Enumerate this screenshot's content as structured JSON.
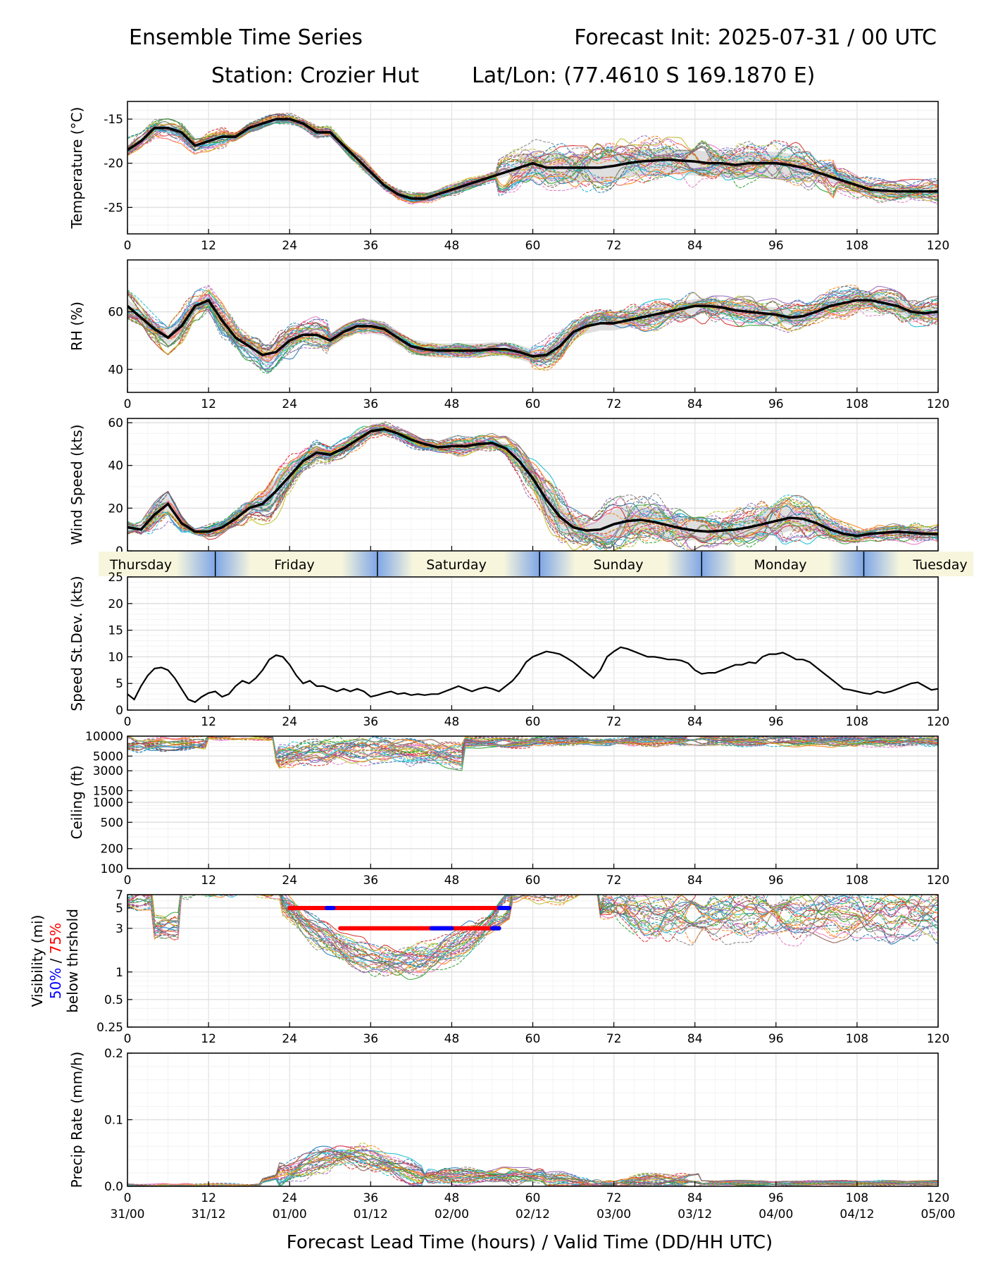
{
  "header": {
    "title_left": "Ensemble Time Series",
    "title_right": "Forecast Init: 2025-07-31 / 00 UTC",
    "station": "Station: Crozier Hut",
    "latlon": "Lat/Lon: (77.4610 S 169.1870 E)"
  },
  "x_axis": {
    "ticks": [
      0,
      12,
      24,
      36,
      48,
      60,
      72,
      84,
      96,
      108,
      120
    ],
    "valid_times": [
      "31/00",
      "31/12",
      "01/00",
      "01/12",
      "02/00",
      "02/12",
      "03/00",
      "03/12",
      "04/00",
      "04/12",
      "05/00"
    ],
    "label": "Forecast Lead Time (hours) / Valid Time (DD/HH UTC)"
  },
  "day_band": {
    "days": [
      "Thursday",
      "Friday",
      "Saturday",
      "Sunday",
      "Monday",
      "Tuesday"
    ],
    "boundaries": [
      13,
      37,
      61,
      85,
      109
    ]
  },
  "colors": {
    "mean": "#000000",
    "spread": "#d9d9d9",
    "threshold50": "#0000ff",
    "threshold75": "#ff0000",
    "members": [
      "#1f77b4",
      "#ff7f0e",
      "#2ca02c",
      "#d62728",
      "#9467bd",
      "#8c564b",
      "#e377c2",
      "#7f7f7f",
      "#bcbd22",
      "#17becf"
    ]
  },
  "chart_data": [
    {
      "id": "temperature",
      "type": "line",
      "ylabel": "Temperature (°C)",
      "ylim": [
        -28,
        -13
      ],
      "yticks": [
        -15,
        -20,
        -25
      ],
      "ensemble_mean": {
        "x": [
          0,
          2,
          4,
          6,
          8,
          10,
          12,
          14,
          16,
          18,
          20,
          22,
          24,
          26,
          28,
          30,
          32,
          34,
          36,
          38,
          40,
          42,
          44,
          46,
          48,
          50,
          52,
          54,
          56,
          58,
          60,
          62,
          64,
          66,
          68,
          70,
          72,
          74,
          76,
          78,
          80,
          82,
          84,
          86,
          88,
          90,
          92,
          94,
          96,
          98,
          100,
          102,
          104,
          106,
          108,
          110,
          112,
          114,
          116,
          118,
          120
        ],
        "y": [
          -18.5,
          -17.5,
          -16.0,
          -16.0,
          -16.5,
          -18.0,
          -17.5,
          -17.0,
          -17.0,
          -16.0,
          -15.5,
          -15.0,
          -15.0,
          -15.5,
          -16.5,
          -16.5,
          -18.0,
          -19.5,
          -21.0,
          -22.5,
          -23.5,
          -24.0,
          -24.0,
          -23.5,
          -23.0,
          -22.5,
          -22.0,
          -21.5,
          -21.0,
          -20.5,
          -20.0,
          -20.5,
          -20.5,
          -20.5,
          -20.5,
          -20.5,
          -20.3,
          -20.0,
          -19.8,
          -19.7,
          -19.6,
          -19.7,
          -19.8,
          -20.0,
          -20.0,
          -20.2,
          -20.0,
          -20.0,
          -20.0,
          -20.2,
          -20.5,
          -21.0,
          -21.5,
          -22.0,
          -22.5,
          -23.0,
          -23.1,
          -23.2,
          -23.2,
          -23.2,
          -23.2
        ]
      },
      "spread_band": {
        "x": [
          60,
          66,
          72,
          78,
          84,
          90
        ],
        "low": [
          -21.5,
          -22.5,
          -22.5,
          -21.5,
          -21.0,
          -21.0
        ],
        "high": [
          -19.5,
          -19.5,
          -19.5,
          -19.0,
          -19.0,
          -19.5
        ]
      },
      "member_count": 30
    },
    {
      "id": "rh",
      "type": "line",
      "ylabel": "RH (%)",
      "ylim": [
        32,
        78
      ],
      "yticks": [
        40,
        60
      ],
      "ensemble_mean": {
        "x": [
          0,
          2,
          4,
          6,
          8,
          10,
          12,
          14,
          16,
          18,
          20,
          22,
          24,
          26,
          28,
          30,
          32,
          34,
          36,
          38,
          40,
          42,
          44,
          46,
          48,
          50,
          52,
          54,
          56,
          58,
          60,
          62,
          64,
          66,
          68,
          70,
          72,
          74,
          76,
          78,
          80,
          82,
          84,
          86,
          88,
          90,
          92,
          94,
          96,
          98,
          100,
          102,
          104,
          106,
          108,
          110,
          112,
          114,
          116,
          118,
          120
        ],
        "y": [
          62.0,
          58.0,
          54.0,
          51.0,
          55.0,
          62.0,
          64.0,
          57.0,
          51.0,
          48.0,
          45.0,
          46.0,
          50.0,
          52.0,
          52.0,
          50.0,
          53.0,
          55.0,
          55.0,
          54.0,
          51.0,
          48.0,
          47.0,
          46.5,
          46.5,
          46.5,
          46.5,
          47.0,
          47.0,
          46.0,
          44.5,
          45.0,
          48.0,
          53.0,
          55.0,
          56.0,
          56.0,
          57.0,
          58.0,
          59.0,
          60.0,
          61.0,
          62.0,
          62.0,
          61.5,
          60.5,
          60.0,
          59.5,
          59.0,
          58.0,
          58.5,
          60.0,
          62.0,
          63.0,
          64.0,
          64.0,
          63.0,
          62.0,
          60.0,
          59.5,
          60.0
        ]
      },
      "member_count": 30
    },
    {
      "id": "wind_speed",
      "type": "line",
      "ylabel": "Wind Speed (kts)",
      "ylim": [
        0,
        62
      ],
      "yticks": [
        0,
        20,
        40,
        60
      ],
      "ensemble_mean": {
        "x": [
          0,
          2,
          4,
          6,
          8,
          10,
          12,
          14,
          16,
          18,
          20,
          22,
          24,
          26,
          28,
          30,
          32,
          34,
          36,
          38,
          40,
          42,
          44,
          46,
          48,
          50,
          52,
          54,
          56,
          58,
          60,
          62,
          64,
          66,
          68,
          70,
          72,
          74,
          76,
          78,
          80,
          82,
          84,
          86,
          88,
          90,
          92,
          94,
          96,
          98,
          100,
          102,
          104,
          106,
          108,
          110,
          112,
          114,
          116,
          118,
          120
        ],
        "y": [
          11,
          10,
          17,
          22,
          13,
          9,
          9,
          11,
          15,
          20,
          22,
          28,
          35,
          42,
          46,
          45,
          48,
          52,
          56,
          57,
          55,
          52,
          50,
          48.5,
          49,
          49,
          50,
          50.5,
          48,
          42,
          34,
          24,
          16,
          11,
          9.5,
          10,
          12.5,
          14,
          14.5,
          13.5,
          12,
          10.5,
          9.5,
          9,
          9.5,
          10,
          11,
          12.5,
          14,
          15.5,
          15,
          13,
          10,
          8,
          7,
          8,
          8.5,
          9,
          8.5,
          8,
          8
        ]
      },
      "member_count": 30
    },
    {
      "id": "speed_stdev",
      "type": "line",
      "ylabel": "Speed St.Dev. (kts)",
      "ylim": [
        0,
        25
      ],
      "yticks": [
        0,
        5,
        10,
        15,
        20,
        25
      ],
      "x": [
        0,
        1,
        2,
        3,
        4,
        5,
        6,
        7,
        8,
        9,
        10,
        11,
        12,
        13,
        14,
        15,
        16,
        17,
        18,
        19,
        20,
        21,
        22,
        23,
        24,
        25,
        26,
        27,
        28,
        29,
        30,
        31,
        32,
        33,
        34,
        35,
        36,
        37,
        38,
        39,
        40,
        41,
        42,
        43,
        44,
        45,
        46,
        47,
        48,
        49,
        50,
        51,
        52,
        53,
        54,
        55,
        56,
        57,
        58,
        59,
        60,
        61,
        62,
        63,
        64,
        65,
        66,
        67,
        68,
        69,
        70,
        71,
        72,
        73,
        74,
        75,
        76,
        77,
        78,
        79,
        80,
        81,
        82,
        83,
        84,
        85,
        86,
        87,
        88,
        89,
        90,
        91,
        92,
        93,
        94,
        95,
        96,
        97,
        98,
        99,
        100,
        101,
        102,
        103,
        104,
        105,
        106,
        107,
        108,
        109,
        110,
        111,
        112,
        113,
        114,
        115,
        116,
        117,
        118,
        119,
        120
      ],
      "y": [
        3.0,
        2.0,
        4.5,
        6.5,
        7.8,
        8.0,
        7.5,
        6.0,
        4.0,
        2.0,
        1.5,
        2.5,
        3.2,
        3.5,
        2.5,
        3.0,
        4.5,
        5.5,
        5.0,
        6.0,
        7.5,
        9.5,
        10.3,
        10.0,
        8.5,
        6.5,
        5.0,
        5.5,
        4.5,
        4.5,
        4.0,
        3.5,
        4.0,
        3.5,
        4.0,
        3.5,
        2.5,
        2.8,
        3.2,
        3.5,
        3.0,
        3.2,
        2.8,
        3.0,
        2.8,
        3.0,
        3.0,
        3.5,
        4.0,
        4.5,
        4.0,
        3.5,
        4.0,
        4.3,
        4.0,
        3.5,
        4.5,
        5.5,
        7.0,
        9.0,
        10.0,
        10.5,
        11.0,
        10.8,
        10.5,
        9.8,
        9.0,
        8.0,
        7.0,
        6.0,
        7.5,
        10.0,
        11.0,
        11.8,
        11.5,
        11.0,
        10.5,
        10.0,
        10.0,
        9.8,
        9.5,
        9.5,
        9.3,
        8.8,
        7.5,
        6.8,
        7.0,
        7.0,
        7.5,
        8.0,
        8.5,
        8.5,
        9.0,
        8.8,
        10.0,
        10.5,
        10.5,
        10.8,
        10.2,
        9.5,
        9.5,
        9.0,
        8.0,
        7.0,
        6.0,
        5.0,
        4.0,
        3.8,
        3.5,
        3.2,
        3.0,
        3.5,
        3.2,
        3.5,
        4.0,
        4.5,
        5.0,
        5.2,
        4.5,
        3.8,
        4.0
      ]
    },
    {
      "id": "ceiling",
      "type": "line",
      "scale": "log",
      "ylabel": "Ceiling (ft)",
      "ylim": [
        100,
        10000
      ],
      "yticks": [
        100,
        200,
        500,
        1000,
        1500,
        3000,
        5000,
        10000
      ],
      "member_count": 30
    },
    {
      "id": "visibility",
      "type": "line",
      "scale": "log",
      "ylabel": "Visibility (mi)",
      "ylabel_sub_prefix": "",
      "ylabel_sub_50": "50%",
      "ylabel_sub_sep": " / ",
      "ylabel_sub_75": "75%",
      "ylabel_sub2": "below thrshold",
      "ylim": [
        0.25,
        7
      ],
      "yticks": [
        0.25,
        0.5,
        1,
        3,
        5,
        7
      ],
      "thresholds": [
        {
          "level": 5,
          "pct75": [
            24,
            56.5
          ],
          "pct50": [
            [
              29.5,
              30.5
            ],
            [
              55,
              56.5
            ]
          ]
        },
        {
          "level": 3,
          "pct75": [
            31.5,
            55
          ],
          "pct50": [
            [
              45,
              48
            ],
            [
              54,
              55
            ]
          ]
        }
      ],
      "member_count": 30
    },
    {
      "id": "precip",
      "type": "line",
      "ylabel": "Precip Rate (mm/h)",
      "ylim": [
        0,
        0.2
      ],
      "yticks": [
        0.0,
        0.1,
        0.2
      ],
      "member_count": 30
    }
  ]
}
